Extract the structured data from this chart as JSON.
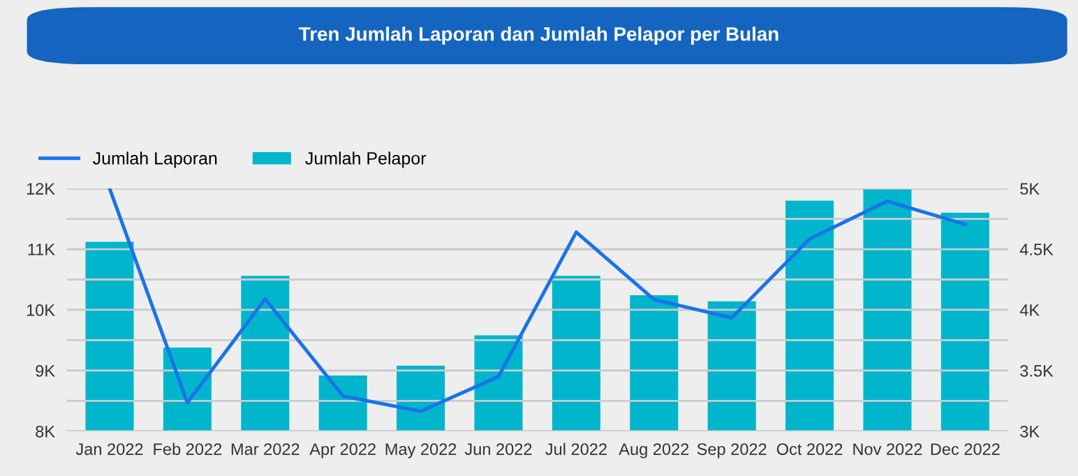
{
  "chart_data": {
    "type": "bar",
    "title": "Tren Jumlah Laporan dan Jumlah Pelapor per Bulan",
    "categories": [
      "Jan 2022",
      "Feb 2022",
      "Mar 2022",
      "Apr 2022",
      "May 2022",
      "Jun 2022",
      "Jul 2022",
      "Aug 2022",
      "Sep 2022",
      "Oct 2022",
      "Nov 2022",
      "Dec 2022"
    ],
    "series": [
      {
        "name": "Jumlah Laporan",
        "type": "line",
        "color": "#1a73e8",
        "values": [
          12000,
          8470,
          10180,
          8580,
          8330,
          8900,
          11280,
          10170,
          9870,
          11170,
          11790,
          11410
        ]
      },
      {
        "name": "Jumlah Pelapor",
        "axis": "y2",
        "color": "#00b5cc",
        "values": [
          4560,
          3690,
          4280,
          3460,
          3540,
          3790,
          4280,
          4120,
          4070,
          4900,
          5000,
          4800
        ]
      }
    ],
    "ylim": [
      8000,
      12000
    ],
    "yticks": [
      {
        "value": 8000,
        "label": "8K"
      },
      {
        "value": 8500,
        "label": null
      },
      {
        "value": 9000,
        "label": "9K"
      },
      {
        "value": 9500,
        "label": null
      },
      {
        "value": 10000,
        "label": "10K"
      },
      {
        "value": 10500,
        "label": null
      },
      {
        "value": 11000,
        "label": "11K"
      },
      {
        "value": 11500,
        "label": null
      },
      {
        "value": 12000,
        "label": "12K"
      }
    ],
    "y2lim": [
      3000,
      5000
    ],
    "y2ticks": [
      {
        "value": 3000,
        "label": "3K"
      },
      {
        "value": 3500,
        "label": "3.5K"
      },
      {
        "value": 4000,
        "label": "4K"
      },
      {
        "value": 4500,
        "label": "4.5K"
      },
      {
        "value": 5000,
        "label": "5K"
      }
    ],
    "grid": "y",
    "legend": "top left",
    "marker": "none",
    "line_style": "solid"
  }
}
